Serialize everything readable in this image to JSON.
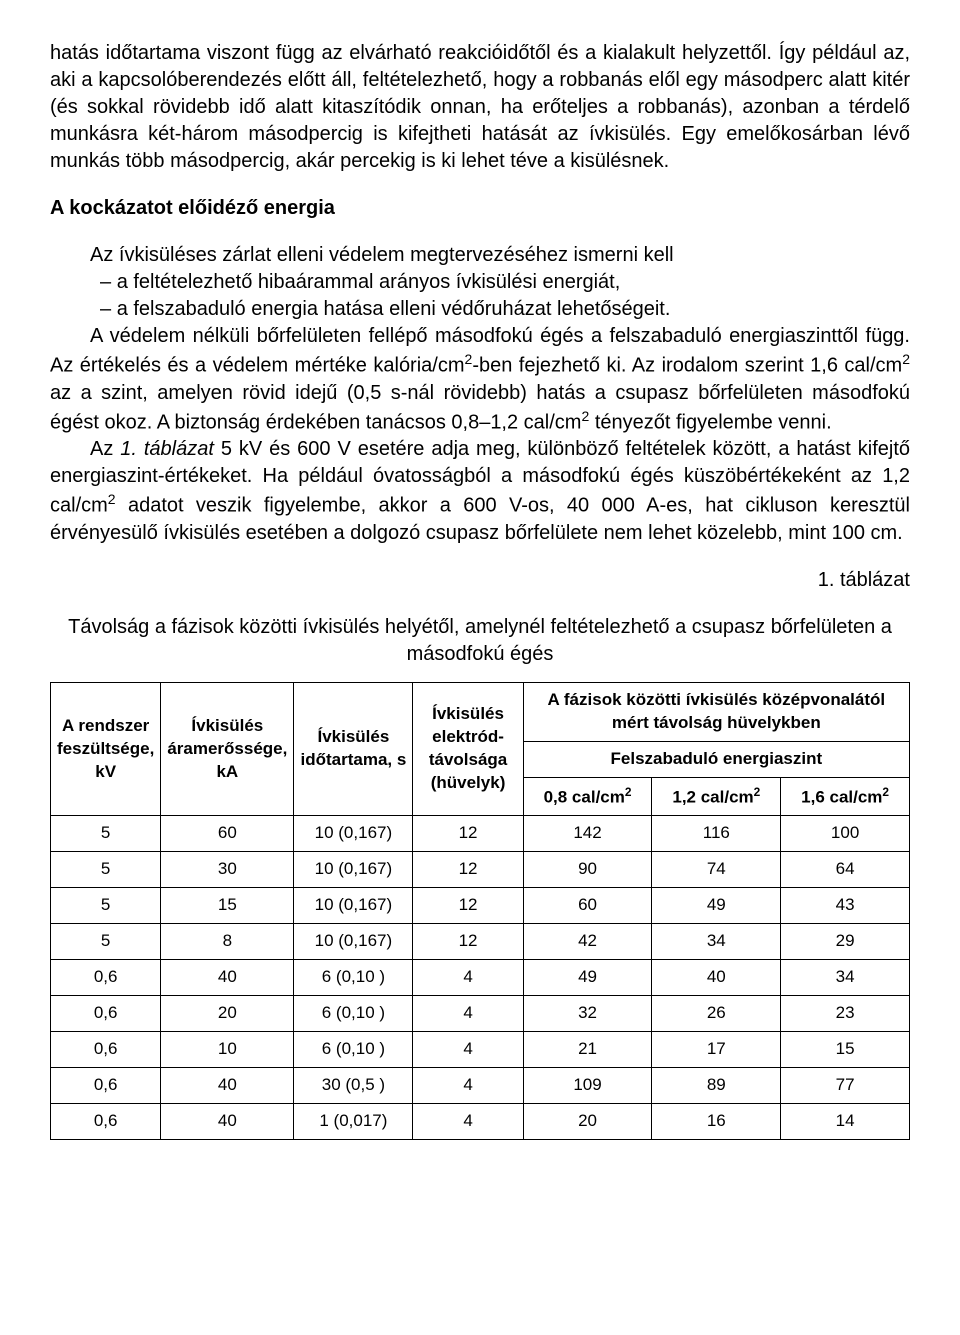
{
  "paragraphs": {
    "p1": "hatás időtartama viszont függ az elvárható reakcióidőtől és a kialakult helyzettől. Így például az, aki a kapcsolóberendezés előtt áll, feltételezhető, hogy a robbanás elől egy másodperc alatt kitér (és sokkal rövidebb idő alatt kitaszítódik onnan, ha erőteljes a robbanás), azonban a térdelő munkásra két-három másodpercig is kifejtheti hatását az ívkisülés. Egy emelőkosárban lévő munkás több másodpercig, akár percekig is ki lehet téve a kisülésnek.",
    "h1": "A kockázatot előidéző energia",
    "p2_lead": "Az ívkisüléses zárlat elleni védelem megtervezéséhez ismerni kell",
    "p2_li1": "a feltételezhető hibaárammal arányos ívkisülési energiát,",
    "p2_li2": "a felszabaduló energia hatása elleni védőruházat lehetőségeit.",
    "p3_a": "A védelem nélküli bőrfelületen fellépő másodfokú égés a felszabaduló energiaszinttől függ. Az értékelés és a védelem mértéke kalória/cm",
    "p3_b": "-ben fejezhető ki. Az irodalom szerint 1,6 cal/cm",
    "p3_c": " az a szint, amelyen rövid idejű (0,5 s-nál rövidebb) hatás a csupasz bőrfelületen másodfokú égést okoz. A biztonság érdekében tanácsos 0,8–1,2 cal/cm",
    "p3_d": " tényezőt figyelembe venni.",
    "p4_a": "Az ",
    "p4_ital": "1. táblázat",
    "p4_b": " 5 kV és 600 V esetére adja meg, különböző feltételek között, a hatást kifejtő energiaszint-értékeket. Ha például óvatosságból a másodfokú égés küszöbértékeként az 1,2 cal/cm",
    "p4_c": " adatot veszik figyelembe, akkor a 600 V-os, 40 000 A-es, hat cikluson keresztül érvényesülő ívkisülés esetében a dolgozó csupasz bőrfelülete nem lehet közelebb, mint 100 cm."
  },
  "table": {
    "caption_num": "1. táblázat",
    "caption": "Távolság a fázisok közötti ívkisülés helyétől, amelynél feltételezhető a csupasz bőrfelületen a másodfokú égés",
    "headers": {
      "col1": "A rendszer feszültsége, kV",
      "col2": "Ívkisülés áramerőssége, kA",
      "col3": "Ívkisülés időtartama, s",
      "col4": "Ívkisülés elektród-távolsága (hüvelyk)",
      "merged_top": "A fázisok közötti ívkisülés középvonalától mért távolság hüvelykben",
      "merged_sub": "Felszabaduló energiaszint",
      "e1": "0,8 cal/cm",
      "e2": "1,2 cal/cm",
      "e3": "1,6 cal/cm"
    },
    "rows": [
      {
        "c1": "5",
        "c2": "60",
        "c3": "10 (0,167)",
        "c4": "12",
        "c5": "142",
        "c6": "116",
        "c7": "100"
      },
      {
        "c1": "5",
        "c2": "30",
        "c3": "10 (0,167)",
        "c4": "12",
        "c5": "90",
        "c6": "74",
        "c7": "64"
      },
      {
        "c1": "5",
        "c2": "15",
        "c3": "10 (0,167)",
        "c4": "12",
        "c5": "60",
        "c6": "49",
        "c7": "43"
      },
      {
        "c1": "5",
        "c2": "8",
        "c3": "10 (0,167)",
        "c4": "12",
        "c5": "42",
        "c6": "34",
        "c7": "29"
      },
      {
        "c1": "0,6",
        "c2": "40",
        "c3": "6 (0,10  )",
        "c4": "4",
        "c5": "49",
        "c6": "40",
        "c7": "34"
      },
      {
        "c1": "0,6",
        "c2": "20",
        "c3": "6 (0,10  )",
        "c4": "4",
        "c5": "32",
        "c6": "26",
        "c7": "23"
      },
      {
        "c1": "0,6",
        "c2": "10",
        "c3": "6 (0,10  )",
        "c4": "4",
        "c5": "21",
        "c6": "17",
        "c7": "15"
      },
      {
        "c1": "0,6",
        "c2": "40",
        "c3": "30 (0,5   )",
        "c4": "4",
        "c5": "109",
        "c6": "89",
        "c7": "77"
      },
      {
        "c1": "0,6",
        "c2": "40",
        "c3": "1 (0,017)",
        "c4": "4",
        "c5": "20",
        "c6": "16",
        "c7": "14"
      }
    ]
  }
}
